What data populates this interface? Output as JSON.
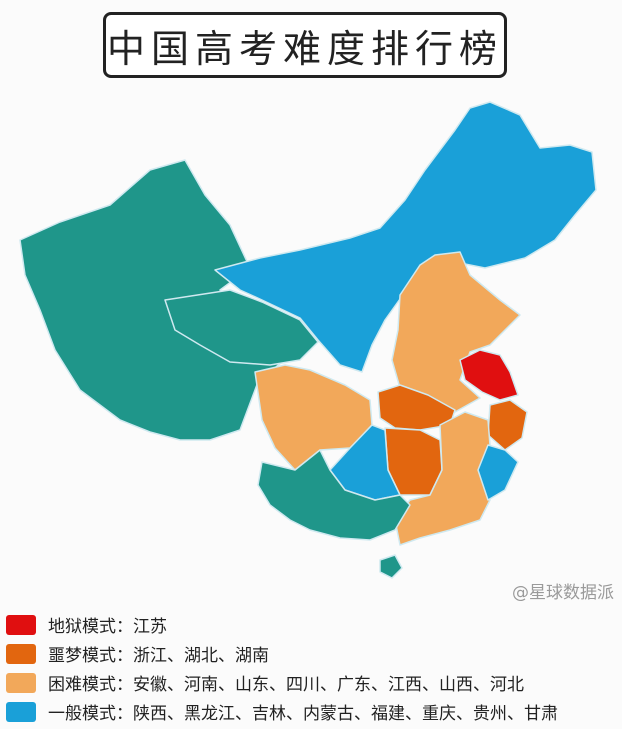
{
  "title": "中国高考难度排行榜",
  "colors": {
    "hell": "#e00f10",
    "nightmare": "#e2660f",
    "hard": "#f2a85a",
    "normal": "#1aa0d8",
    "other": "#1f968a"
  },
  "legend": [
    {
      "mode": "地狱模式",
      "sep": "：",
      "provinces": "江苏",
      "color": "#e00f10"
    },
    {
      "mode": "噩梦模式",
      "sep": "：",
      "provinces": "浙江、湖北、湖南",
      "color": "#e2660f"
    },
    {
      "mode": "困难模式",
      "sep": "：",
      "provinces": "安徽、河南、山东、四川、广东、江西、山西、河北",
      "color": "#f2a85a"
    },
    {
      "mode": "一般模式",
      "sep": "：",
      "provinces": "陕西、黑龙江、吉林、内蒙古、福建、重庆、贵州、甘肃",
      "color": "#1aa0d8"
    }
  ],
  "watermark": "@星球数据派"
}
